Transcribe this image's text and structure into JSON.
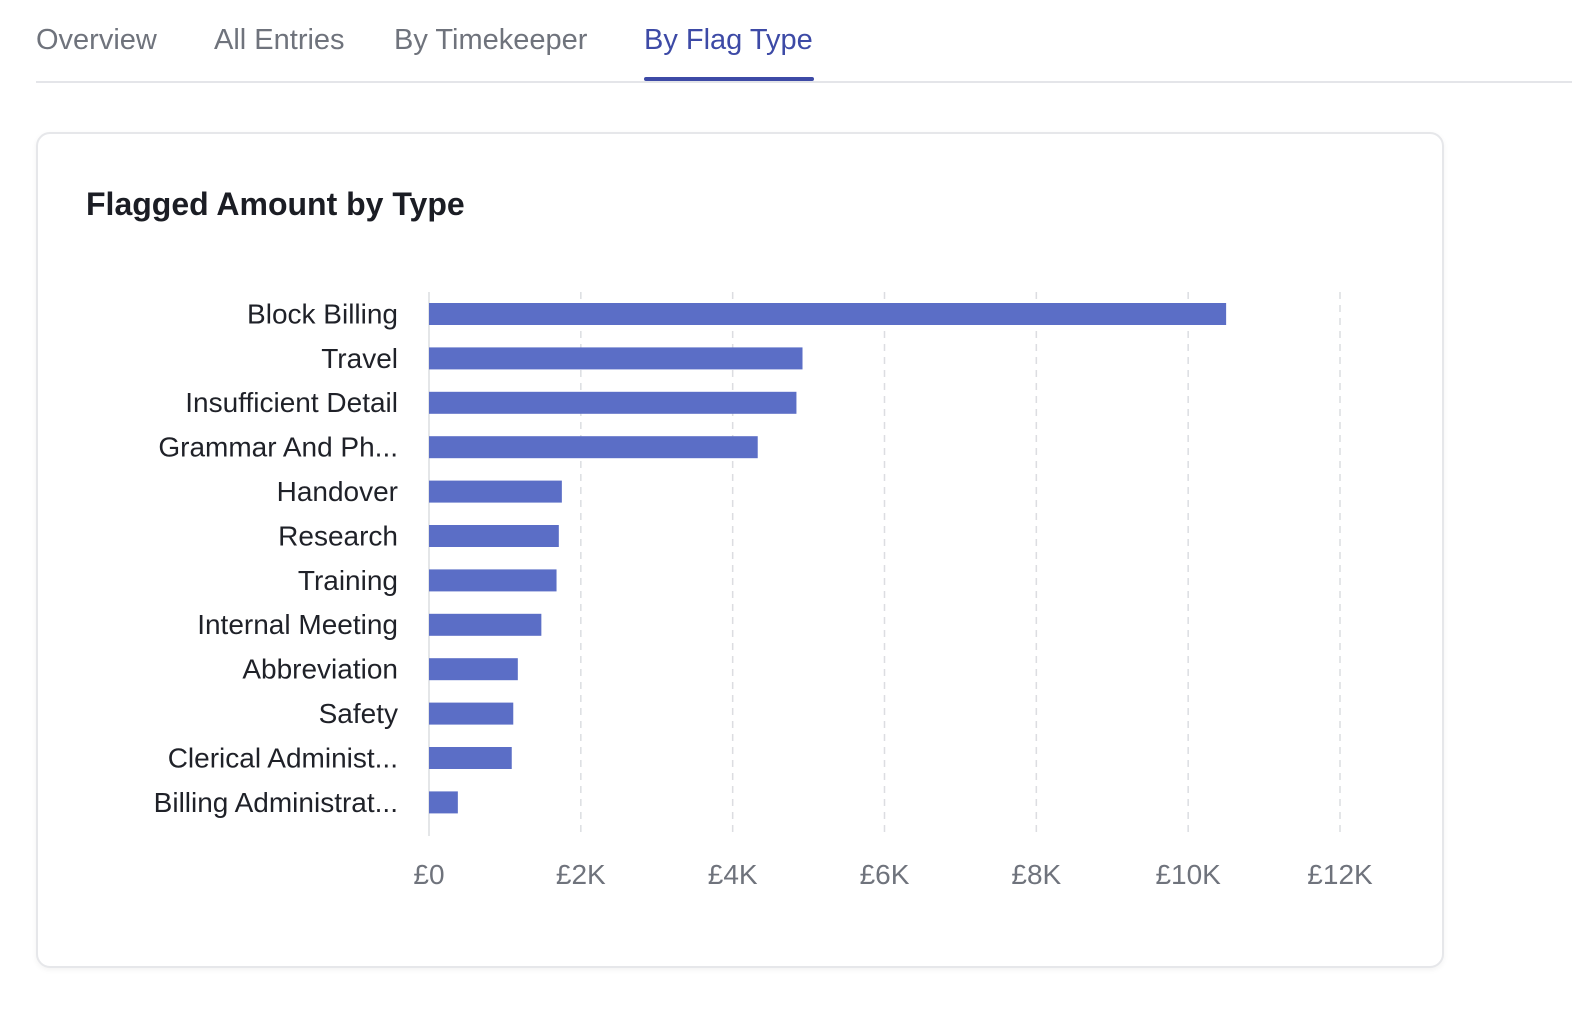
{
  "tabs": [
    {
      "label": "Overview",
      "active": false
    },
    {
      "label": "All Entries",
      "active": false
    },
    {
      "label": "By Timekeeper",
      "active": false
    },
    {
      "label": "By Flag Type",
      "active": true
    }
  ],
  "colors": {
    "accent": "#3d4aa6",
    "bar": "#5b6ec6",
    "grid": "#dcdde1"
  },
  "card": {
    "title": "Flagged Amount by Type"
  },
  "chart_data": {
    "type": "bar",
    "orientation": "horizontal",
    "title": "Flagged Amount by Type",
    "xlabel": "",
    "ylabel": "",
    "categories": [
      "Block Billing",
      "Travel",
      "Insufficient Detail",
      "Grammar And Ph...",
      "Handover",
      "Research",
      "Training",
      "Internal Meeting",
      "Abbreviation",
      "Safety",
      "Clerical Administ...",
      "Billing Administrat..."
    ],
    "values": [
      10500,
      4920,
      4840,
      4330,
      1750,
      1710,
      1680,
      1480,
      1170,
      1110,
      1090,
      380
    ],
    "xlim": [
      0,
      12000
    ],
    "ticks": [
      0,
      2000,
      4000,
      6000,
      8000,
      10000,
      12000
    ],
    "tick_labels": [
      "£0",
      "£2K",
      "£4K",
      "£6K",
      "£8K",
      "£10K",
      "£12K"
    ],
    "grid": "vertical-dashed",
    "legend": "none"
  }
}
